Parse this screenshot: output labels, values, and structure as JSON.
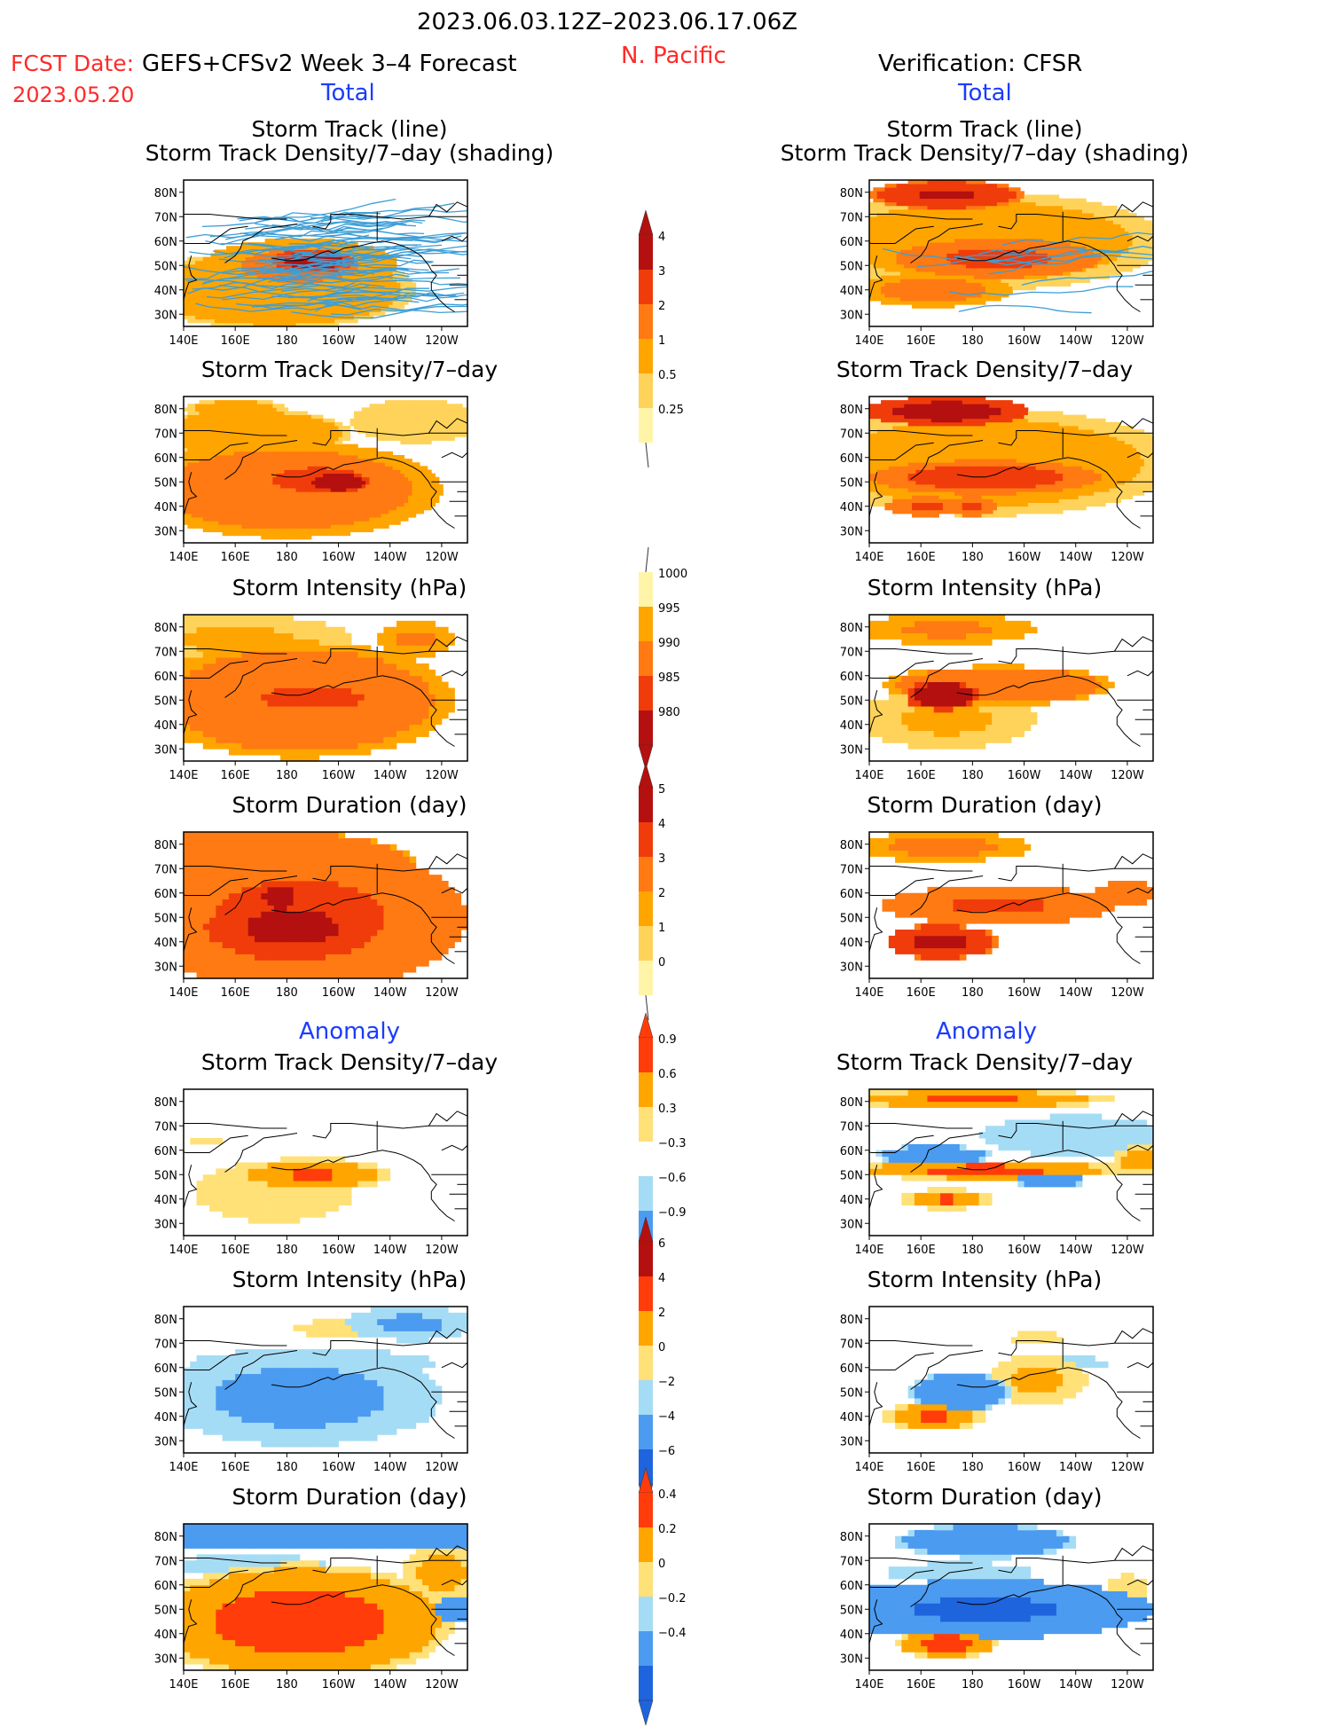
{
  "header": {
    "date_range": "2023.06.03.12Z–2023.06.17.06Z",
    "fcst_date_label": "FCST Date:",
    "model_label": "GEFS+CFSv2 Week 3–4 Forecast",
    "fcst_date": "2023.05.20",
    "region": "N. Pacific",
    "verification": "Verification: CFSR",
    "total_left": "Total",
    "total_right": "Total",
    "anomaly_left": "Anomaly",
    "anomaly_right": "Anomaly"
  },
  "panel_titles": {
    "track_line": "Storm Track (line)",
    "track_density_shading": "Storm Track Density/7–day (shading)",
    "track_density": "Storm Track Density/7–day",
    "intensity": "Storm Intensity (hPa)",
    "duration": "Storm Duration (day)"
  },
  "axes": {
    "x_ticks": [
      "140E",
      "160E",
      "180",
      "160W",
      "140W",
      "120W"
    ],
    "y_ticks": [
      "80N",
      "70N",
      "60N",
      "50N",
      "40N",
      "30N"
    ]
  },
  "chart_data": {
    "type": "heatmap",
    "lon_range": [
      140,
      250
    ],
    "lat_range": [
      25,
      85
    ],
    "colors": {
      "seq": [
        "#ffffff",
        "#fff5a8",
        "#ffd35a",
        "#ffa500",
        "#ff7a12",
        "#f03c0a",
        "#b41010"
      ],
      "div": [
        "#1e64dc",
        "#4b9bf0",
        "#a5dcf5",
        "#ffffff",
        "#ffe178",
        "#ffa500",
        "#ff3c0a",
        "#b41010"
      ],
      "track_line": "#3c9ed6",
      "coast": "#000000"
    },
    "colorbars": [
      {
        "name": "track_density",
        "labels": [
          "4",
          "3",
          "2",
          "1",
          "0.5",
          "0.25"
        ],
        "ticks": [
          4,
          3,
          2,
          1,
          0.5,
          0.25
        ]
      },
      {
        "name": "intensity",
        "labels": [
          "1000",
          "995",
          "990",
          "985",
          "980"
        ],
        "ticks": [
          1000,
          995,
          990,
          985,
          980
        ]
      },
      {
        "name": "duration",
        "labels": [
          "5",
          "4",
          "3",
          "2",
          "1",
          "0"
        ],
        "ticks": [
          5,
          4,
          3,
          2,
          1,
          0
        ]
      },
      {
        "name": "density_anomaly",
        "labels": [
          "0.9",
          "0.6",
          "0.3",
          "−0.3",
          "−0.6",
          "−0.9"
        ],
        "ticks": [
          0.9,
          0.6,
          0.3,
          -0.3,
          -0.6,
          -0.9
        ]
      },
      {
        "name": "intensity_anomaly",
        "labels": [
          "6",
          "4",
          "2",
          "0",
          "−2",
          "−4",
          "−6"
        ],
        "ticks": [
          6,
          4,
          2,
          0,
          -2,
          -4,
          -6
        ]
      },
      {
        "name": "duration_anomaly",
        "labels": [
          "0.4",
          "0.2",
          "0",
          "−0.2",
          "−0.4"
        ],
        "ticks": [
          0.4,
          0.2,
          0,
          -0.2,
          -0.4
        ]
      }
    ],
    "panels": [
      {
        "id": "fc_track",
        "title_key": "track_line",
        "subtitle_key": "track_density_shading",
        "scale": "seq",
        "tracks": true,
        "blobs": [
          {
            "lon": 185,
            "lat": 50,
            "rx": 38,
            "ry": 11,
            "v": 2.3
          },
          {
            "lon": 190,
            "lat": 52,
            "rx": 16,
            "ry": 5,
            "v": 4.8
          },
          {
            "lon": 175,
            "lat": 40,
            "rx": 55,
            "ry": 16,
            "v": 1.4
          }
        ]
      },
      {
        "id": "fc_density",
        "title_key": "track_density",
        "scale": "seq",
        "blobs": [
          {
            "lon": 180,
            "lat": 47,
            "rx": 60,
            "ry": 20,
            "v": 2.6
          },
          {
            "lon": 192,
            "lat": 51,
            "rx": 26,
            "ry": 7,
            "v": 3.6
          },
          {
            "lon": 200,
            "lat": 50,
            "rx": 12,
            "ry": 4,
            "v": 5.3
          },
          {
            "lon": 165,
            "lat": 70,
            "rx": 40,
            "ry": 10,
            "v": 1.4
          },
          {
            "lon": 160,
            "lat": 80,
            "rx": 20,
            "ry": 4,
            "v": 1.3
          },
          {
            "lon": 230,
            "lat": 75,
            "rx": 25,
            "ry": 9,
            "v": 1.0
          }
        ]
      },
      {
        "id": "fc_intensity",
        "title_key": "intensity",
        "scale": "seq",
        "blocky": true,
        "blobs": [
          {
            "lon": 185,
            "lat": 50,
            "rx": 60,
            "ry": 24,
            "v": 2.7
          },
          {
            "lon": 190,
            "lat": 51,
            "rx": 26,
            "ry": 6,
            "v": 3.7
          },
          {
            "lon": 160,
            "lat": 75,
            "rx": 45,
            "ry": 10,
            "v": 1.1
          },
          {
            "lon": 230,
            "lat": 75,
            "rx": 15,
            "ry": 7,
            "v": 2.2
          }
        ]
      },
      {
        "id": "fc_duration",
        "title_key": "duration",
        "scale": "seq",
        "blocky": true,
        "blobs": [
          {
            "lon": 185,
            "lat": 50,
            "rx": 65,
            "ry": 30,
            "v": 3.3
          },
          {
            "lon": 182,
            "lat": 46,
            "rx": 35,
            "ry": 14,
            "v": 4.4
          },
          {
            "lon": 177,
            "lat": 58,
            "rx": 6,
            "ry": 5,
            "v": 6.2
          },
          {
            "lon": 170,
            "lat": 72,
            "rx": 60,
            "ry": 14,
            "v": 3.0
          }
        ]
      },
      {
        "id": "fc_density_anom",
        "title_key": "track_density",
        "scale": "div",
        "blocky": true,
        "blobs": [
          {
            "lon": 190,
            "lat": 50,
            "rx": 30,
            "ry": 7,
            "v": 2.6
          },
          {
            "lon": 175,
            "lat": 43,
            "rx": 45,
            "ry": 18,
            "v": 1.2
          },
          {
            "lon": 148,
            "lat": 64,
            "rx": 6,
            "ry": 2,
            "v": 2.0
          }
        ]
      },
      {
        "id": "fc_intensity_anom",
        "title_key": "intensity",
        "scale": "div",
        "blocky": true,
        "blobs": [
          {
            "lon": 185,
            "lat": 48,
            "rx": 55,
            "ry": 20,
            "v": -2.3
          },
          {
            "lon": 190,
            "lat": 62,
            "rx": 70,
            "ry": 8,
            "v": -1.2
          },
          {
            "lon": 210,
            "lat": 76,
            "rx": 55,
            "ry": 8,
            "v": 1.1
          },
          {
            "lon": 228,
            "lat": 78,
            "rx": 25,
            "ry": 7,
            "v": -2.2
          }
        ]
      },
      {
        "id": "fc_duration_anom",
        "title_key": "duration",
        "scale": "div",
        "blocky": true,
        "blobs": [
          {
            "lon": 185,
            "lat": 45,
            "rx": 60,
            "ry": 24,
            "v": 2.8
          },
          {
            "lon": 195,
            "lat": 80,
            "rx": 80,
            "ry": 6,
            "v": -3.0
          },
          {
            "lon": 165,
            "lat": 68,
            "rx": 45,
            "ry": 6,
            "v": -1.2
          },
          {
            "lon": 240,
            "lat": 65,
            "rx": 15,
            "ry": 12,
            "v": 2.3
          },
          {
            "lon": 245,
            "lat": 50,
            "rx": 8,
            "ry": 6,
            "v": -2.8
          }
        ]
      },
      {
        "id": "obs_track",
        "title_key": "track_line",
        "subtitle_key": "track_density_shading",
        "scale": "seq",
        "tracks": true,
        "blobs": [
          {
            "lon": 170,
            "lat": 79,
            "rx": 30,
            "ry": 6,
            "v": 4.2
          },
          {
            "lon": 190,
            "lat": 53,
            "rx": 40,
            "ry": 8,
            "v": 3.3
          },
          {
            "lon": 165,
            "lat": 40,
            "rx": 30,
            "ry": 7,
            "v": 2.4
          },
          {
            "lon": 185,
            "lat": 60,
            "rx": 70,
            "ry": 20,
            "v": 1.3
          }
        ]
      },
      {
        "id": "obs_density",
        "title_key": "track_density",
        "scale": "seq",
        "blobs": [
          {
            "lon": 170,
            "lat": 79,
            "rx": 32,
            "ry": 6,
            "v": 4.7
          },
          {
            "lon": 185,
            "lat": 52,
            "rx": 45,
            "ry": 7,
            "v": 3.6
          },
          {
            "lon": 162,
            "lat": 40,
            "rx": 16,
            "ry": 4,
            "v": 3.2
          },
          {
            "lon": 180,
            "lat": 40,
            "rx": 10,
            "ry": 4,
            "v": 3.2
          },
          {
            "lon": 185,
            "lat": 58,
            "rx": 75,
            "ry": 22,
            "v": 1.3
          }
        ]
      },
      {
        "id": "obs_intensity",
        "title_key": "intensity",
        "scale": "seq",
        "blocky": true,
        "blobs": [
          {
            "lon": 170,
            "lat": 79,
            "rx": 35,
            "ry": 6,
            "v": 2.2
          },
          {
            "lon": 168,
            "lat": 52,
            "rx": 14,
            "ry": 6,
            "v": 5.3
          },
          {
            "lon": 190,
            "lat": 56,
            "rx": 45,
            "ry": 8,
            "v": 2.8
          },
          {
            "lon": 170,
            "lat": 42,
            "rx": 35,
            "ry": 12,
            "v": 1.1
          }
        ]
      },
      {
        "id": "obs_duration",
        "title_key": "duration",
        "scale": "seq",
        "blocky": true,
        "blobs": [
          {
            "lon": 168,
            "lat": 79,
            "rx": 35,
            "ry": 6,
            "v": 2.3
          },
          {
            "lon": 190,
            "lat": 55,
            "rx": 45,
            "ry": 8,
            "v": 3.2
          },
          {
            "lon": 168,
            "lat": 40,
            "rx": 22,
            "ry": 7,
            "v": 4.4
          },
          {
            "lon": 240,
            "lat": 60,
            "rx": 12,
            "ry": 5,
            "v": 3.0
          }
        ]
      },
      {
        "id": "obs_density_anom",
        "title_key": "track_density",
        "scale": "div",
        "blocky": true,
        "blobs": [
          {
            "lon": 180,
            "lat": 81,
            "rx": 55,
            "ry": 4,
            "v": 2.6
          },
          {
            "lon": 185,
            "lat": 52,
            "rx": 55,
            "ry": 4,
            "v": 2.7
          },
          {
            "lon": 165,
            "lat": 58,
            "rx": 22,
            "ry": 4,
            "v": -2.9
          },
          {
            "lon": 170,
            "lat": 40,
            "rx": 18,
            "ry": 4,
            "v": 2.6
          },
          {
            "lon": 210,
            "lat": 48,
            "rx": 14,
            "ry": 3,
            "v": -2.8
          },
          {
            "lon": 220,
            "lat": 66,
            "rx": 45,
            "ry": 10,
            "v": -1.3
          },
          {
            "lon": 245,
            "lat": 56,
            "rx": 10,
            "ry": 6,
            "v": 2.5
          }
        ]
      },
      {
        "id": "obs_intensity_anom",
        "title_key": "intensity",
        "scale": "div",
        "blocky": true,
        "blobs": [
          {
            "lon": 175,
            "lat": 50,
            "rx": 20,
            "ry": 8,
            "v": -2.8
          },
          {
            "lon": 165,
            "lat": 40,
            "rx": 20,
            "ry": 6,
            "v": 2.6
          },
          {
            "lon": 205,
            "lat": 55,
            "rx": 20,
            "ry": 10,
            "v": 2.2
          },
          {
            "lon": 215,
            "lat": 62,
            "rx": 25,
            "ry": 4,
            "v": -1.2
          },
          {
            "lon": 205,
            "lat": 72,
            "rx": 20,
            "ry": 5,
            "v": 1.1
          }
        ]
      },
      {
        "id": "obs_duration_anom",
        "title_key": "duration",
        "scale": "div",
        "blocky": true,
        "blobs": [
          {
            "lon": 185,
            "lat": 50,
            "rx": 65,
            "ry": 12,
            "v": -3.2
          },
          {
            "lon": 185,
            "lat": 78,
            "rx": 35,
            "ry": 7,
            "v": -2.8
          },
          {
            "lon": 170,
            "lat": 36,
            "rx": 20,
            "ry": 6,
            "v": 2.8
          },
          {
            "lon": 175,
            "lat": 65,
            "rx": 40,
            "ry": 6,
            "v": -1.2
          },
          {
            "lon": 240,
            "lat": 58,
            "rx": 8,
            "ry": 6,
            "v": 1.8
          }
        ]
      }
    ]
  }
}
